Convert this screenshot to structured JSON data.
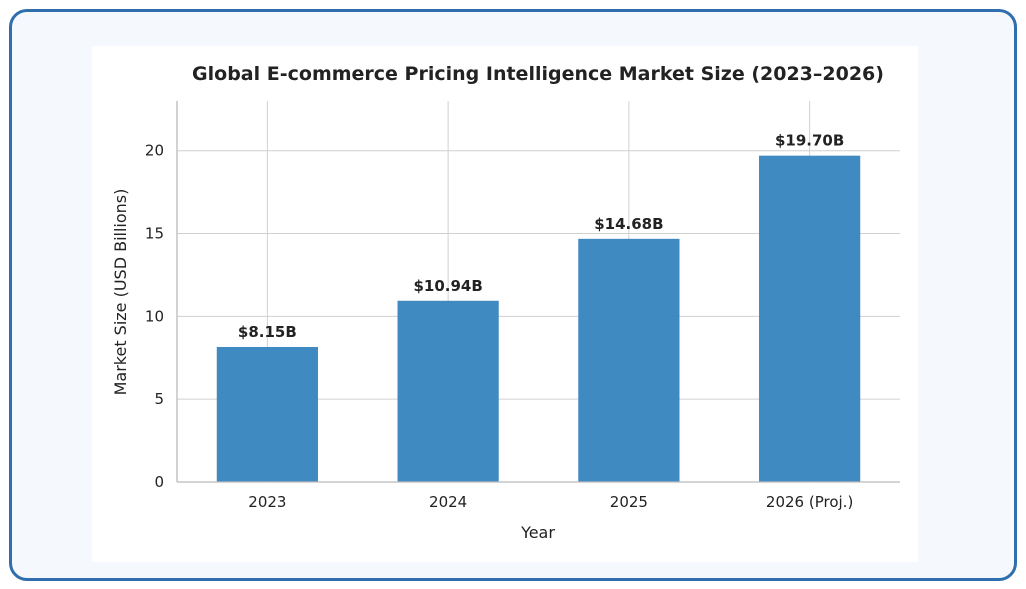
{
  "chart_data": {
    "type": "bar",
    "title": "Global E-commerce Pricing Intelligence Market Size (2023–2026)",
    "xlabel": "Year",
    "ylabel": "Market Size (USD Billions)",
    "categories": [
      "2023",
      "2024",
      "2025",
      "2026 (Proj.)"
    ],
    "values": [
      8.15,
      10.94,
      14.68,
      19.7
    ],
    "value_labels": [
      "$8.15B",
      "$10.94B",
      "$14.68B",
      "$19.70B"
    ],
    "ylim": [
      0,
      23
    ],
    "yticks": [
      0,
      5,
      10,
      15,
      20
    ],
    "grid": true,
    "colors": {
      "bar": "#3a86c0",
      "grid": "#d0d0d0",
      "axis": "#bbbbbb",
      "frame": "#2f6fad"
    }
  }
}
